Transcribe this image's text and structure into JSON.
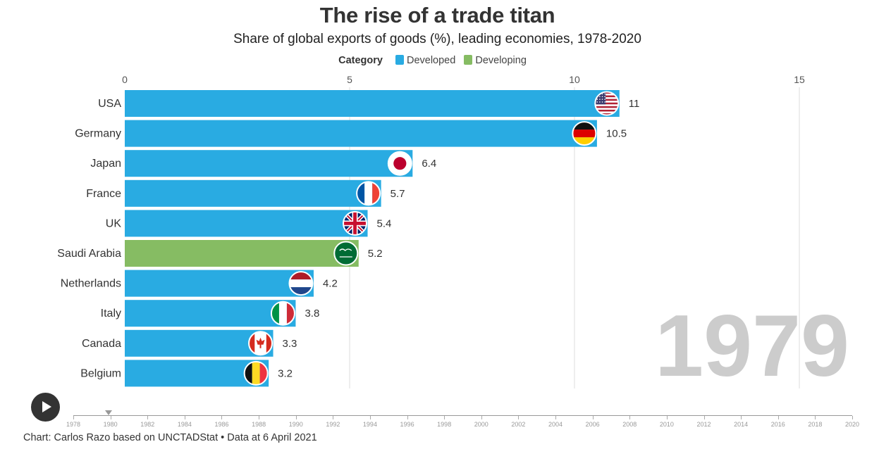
{
  "header": {
    "title": "The rise of a trade titan",
    "subtitle": "Share of global exports of goods (%), leading economies, 1978-2020"
  },
  "legend": {
    "title": "Category",
    "items": [
      {
        "label": "Developed",
        "color": "#29abe2"
      },
      {
        "label": "Developing",
        "color": "#86bc63"
      }
    ]
  },
  "chart_data": {
    "type": "bar",
    "orientation": "horizontal",
    "x_axis": {
      "ticks": [
        0,
        5,
        10,
        15
      ],
      "range": [
        0,
        15
      ],
      "position": "top",
      "grid": true
    },
    "current_year": "1979",
    "categories": [
      "USA",
      "Germany",
      "Japan",
      "France",
      "UK",
      "Saudi Arabia",
      "Netherlands",
      "Italy",
      "Canada",
      "Belgium"
    ],
    "values": [
      11,
      10.5,
      6.4,
      5.7,
      5.4,
      5.2,
      4.2,
      3.8,
      3.3,
      3.2
    ],
    "value_labels": [
      "11",
      "10.5",
      "6.4",
      "5.7",
      "5.4",
      "5.2",
      "4.2",
      "3.8",
      "3.3",
      "3.2"
    ],
    "category_group": [
      "Developed",
      "Developed",
      "Developed",
      "Developed",
      "Developed",
      "Developing",
      "Developed",
      "Developed",
      "Developed",
      "Developed"
    ],
    "flags": [
      "us-flag",
      "germany-flag",
      "japan-flag",
      "france-flag",
      "uk-flag",
      "saudi-arabia-flag",
      "netherlands-flag",
      "italy-flag",
      "canada-flag",
      "belgium-flag"
    ]
  },
  "timeline": {
    "years": [
      "1978",
      "1980",
      "1982",
      "1984",
      "1986",
      "1988",
      "1990",
      "1992",
      "1994",
      "1996",
      "1998",
      "2000",
      "2002",
      "2004",
      "2006",
      "2008",
      "2010",
      "2012",
      "2014",
      "2016",
      "2018",
      "2020"
    ],
    "start": 1978,
    "end": 2020,
    "current": 1979.9,
    "play_icon": "play-icon"
  },
  "footer": {
    "source": "Chart: Carlos Razo based on UNCTADStat • Data at 6 April 2021"
  }
}
